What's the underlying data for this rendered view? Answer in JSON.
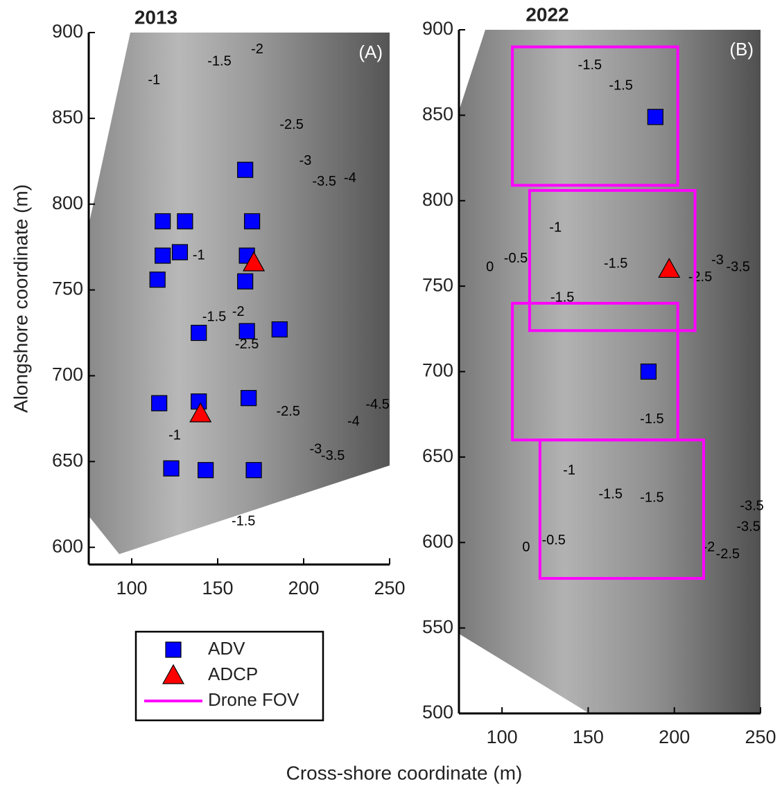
{
  "xlabel": "Cross-shore coordinate (m)",
  "chart_data": [
    {
      "type": "scatter",
      "title": "2013",
      "panel_label": "(A)",
      "ylabel": "Alongshore coordinate (m)",
      "xlim": [
        75,
        250
      ],
      "xticks": [
        100,
        150,
        200,
        250
      ],
      "ylim": [
        590,
        900
      ],
      "yticks": [
        600,
        650,
        700,
        750,
        800,
        850,
        900
      ],
      "series": [
        {
          "marker": "square",
          "color": "#0000ff",
          "x": [
            166,
            118,
            131,
            170,
            118,
            128,
            115,
            167,
            166,
            139,
            167,
            186,
            116,
            139,
            168,
            123,
            143,
            171
          ],
          "y": [
            820,
            790,
            790,
            790,
            770,
            772,
            756,
            770,
            755,
            725,
            726,
            727,
            684,
            685,
            687,
            646,
            645,
            645
          ]
        },
        {
          "marker": "triangle",
          "color": "#ff0000",
          "x": [
            171,
            140
          ],
          "y": [
            766,
            678
          ]
        }
      ],
      "annotations": [
        {
          "text": "-1",
          "x": 113,
          "y": 872
        },
        {
          "text": "-1.5",
          "x": 151,
          "y": 883
        },
        {
          "text": "-2",
          "x": 173,
          "y": 890
        },
        {
          "text": "-2.5",
          "x": 193,
          "y": 846
        },
        {
          "text": "-3",
          "x": 201,
          "y": 825
        },
        {
          "text": "-3.5",
          "x": 212,
          "y": 813
        },
        {
          "text": "-4",
          "x": 227,
          "y": 815
        },
        {
          "text": "-1",
          "x": 139,
          "y": 770
        },
        {
          "text": "-1.5",
          "x": 148,
          "y": 734
        },
        {
          "text": "-2",
          "x": 162,
          "y": 737
        },
        {
          "text": "-2.5",
          "x": 167,
          "y": 718
        },
        {
          "text": "-2.5",
          "x": 191,
          "y": 679
        },
        {
          "text": "-3",
          "x": 207,
          "y": 657
        },
        {
          "text": "-3.5",
          "x": 217,
          "y": 653
        },
        {
          "text": "-4",
          "x": 229,
          "y": 673
        },
        {
          "text": "-4.5",
          "x": 243,
          "y": 683
        },
        {
          "text": "-1",
          "x": 125,
          "y": 665
        },
        {
          "text": "-1.5",
          "x": 165,
          "y": 615
        }
      ]
    },
    {
      "type": "scatter",
      "title": "2022",
      "panel_label": "(B)",
      "xlim": [
        75,
        250
      ],
      "xticks": [
        100,
        150,
        200,
        250
      ],
      "ylim": [
        500,
        900
      ],
      "yticks": [
        500,
        550,
        600,
        650,
        700,
        750,
        800,
        850,
        900
      ],
      "series": [
        {
          "name": "ADV",
          "marker": "square",
          "color": "#0000ff",
          "x": [
            189,
            185
          ],
          "y": [
            849,
            700
          ]
        },
        {
          "name": "ADCP",
          "marker": "triangle",
          "color": "#ff0000",
          "x": [
            197
          ],
          "y": [
            760
          ]
        },
        {
          "name": "Drone FOV",
          "marker": "rect",
          "color": "#ff00ff",
          "rects": [
            {
              "x": [
                106,
                202
              ],
              "y": [
                809,
                890
              ]
            },
            {
              "x": [
                116,
                212
              ],
              "y": [
                724,
                806
              ]
            },
            {
              "x": [
                106,
                202
              ],
              "y": [
                660,
                740
              ]
            },
            {
              "x": [
                122,
                217
              ],
              "y": [
                579,
                660
              ]
            }
          ]
        }
      ],
      "annotations": [
        {
          "text": "-1.5",
          "x": 151,
          "y": 879
        },
        {
          "text": "-1.5",
          "x": 169,
          "y": 867
        },
        {
          "text": "0",
          "x": 93,
          "y": 761
        },
        {
          "text": "-0.5",
          "x": 108,
          "y": 766
        },
        {
          "text": "-1",
          "x": 131,
          "y": 784
        },
        {
          "text": "-1.5",
          "x": 135,
          "y": 743
        },
        {
          "text": "-1.5",
          "x": 166,
          "y": 763
        },
        {
          "text": "-2.5",
          "x": 215,
          "y": 755
        },
        {
          "text": "-3",
          "x": 225,
          "y": 765
        },
        {
          "text": "-3.5",
          "x": 237,
          "y": 761
        },
        {
          "text": "-1.5",
          "x": 187,
          "y": 672
        },
        {
          "text": "-1",
          "x": 139,
          "y": 642
        },
        {
          "text": "-1.5",
          "x": 163,
          "y": 628
        },
        {
          "text": "-1.5",
          "x": 187,
          "y": 626
        },
        {
          "text": "0",
          "x": 114,
          "y": 597
        },
        {
          "text": "-0.5",
          "x": 130,
          "y": 601
        },
        {
          "text": "-2",
          "x": 220,
          "y": 597
        },
        {
          "text": "-2.5",
          "x": 231,
          "y": 593
        },
        {
          "text": "-3.5",
          "x": 243,
          "y": 609
        },
        {
          "text": "-3.5",
          "x": 245,
          "y": 621
        }
      ]
    }
  ]
}
